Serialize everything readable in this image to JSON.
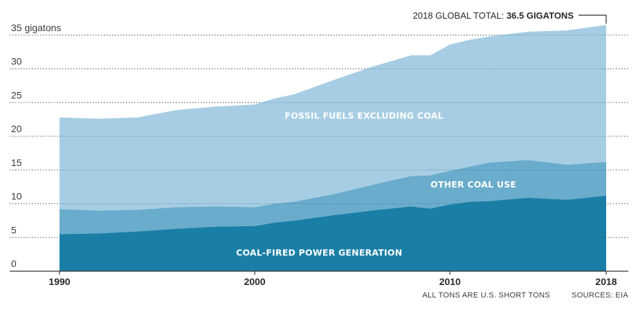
{
  "chart_data": {
    "type": "area",
    "stacked": true,
    "x": [
      1990,
      1992,
      1994,
      1996,
      1998,
      2000,
      2001,
      2002,
      2004,
      2006,
      2008,
      2009,
      2010,
      2011,
      2012,
      2014,
      2016,
      2018
    ],
    "series": [
      {
        "name": "COAL-FIRED POWER GENERATION",
        "color": "#1a7fa6",
        "values": [
          5.5,
          5.6,
          5.9,
          6.3,
          6.6,
          6.7,
          7.2,
          7.5,
          8.3,
          9.0,
          9.6,
          9.3,
          9.9,
          10.3,
          10.4,
          10.9,
          10.6,
          11.2
        ]
      },
      {
        "name": "OTHER COAL USE",
        "color": "#6aaccc",
        "values": [
          3.7,
          3.4,
          3.2,
          3.2,
          3.0,
          2.8,
          2.8,
          2.8,
          3.1,
          3.8,
          4.5,
          4.9,
          5.0,
          5.2,
          5.7,
          5.6,
          5.2,
          5.0
        ]
      },
      {
        "name": "FOSSIL FUELS EXCLUDING COAL",
        "color": "#a6cde3",
        "values": [
          13.6,
          13.6,
          13.7,
          14.4,
          14.8,
          15.2,
          15.6,
          15.9,
          16.9,
          17.5,
          17.9,
          17.8,
          18.7,
          18.8,
          18.7,
          19.0,
          19.9,
          20.3
        ]
      }
    ],
    "yticks": [
      0,
      5,
      10,
      15,
      20,
      25,
      30,
      35
    ],
    "ytick_labels": [
      "0",
      "5",
      "10",
      "15",
      "20",
      "25",
      "30",
      "35 gigatons"
    ],
    "xticks": [
      1990,
      2000,
      2010,
      2018
    ],
    "xtick_labels": [
      "1990",
      "2000",
      "2010",
      "2018"
    ],
    "ylim": [
      0,
      37
    ],
    "xlim": [
      1990,
      2018
    ],
    "total_annotation": {
      "prefix": "2018 GLOBAL TOTAL: ",
      "value": "36.5 GIGATONS",
      "x": 2018,
      "y": 36.5
    },
    "footnote": "ALL TONS ARE U.S. SHORT TONS",
    "source": "SOURCES: EIA"
  }
}
